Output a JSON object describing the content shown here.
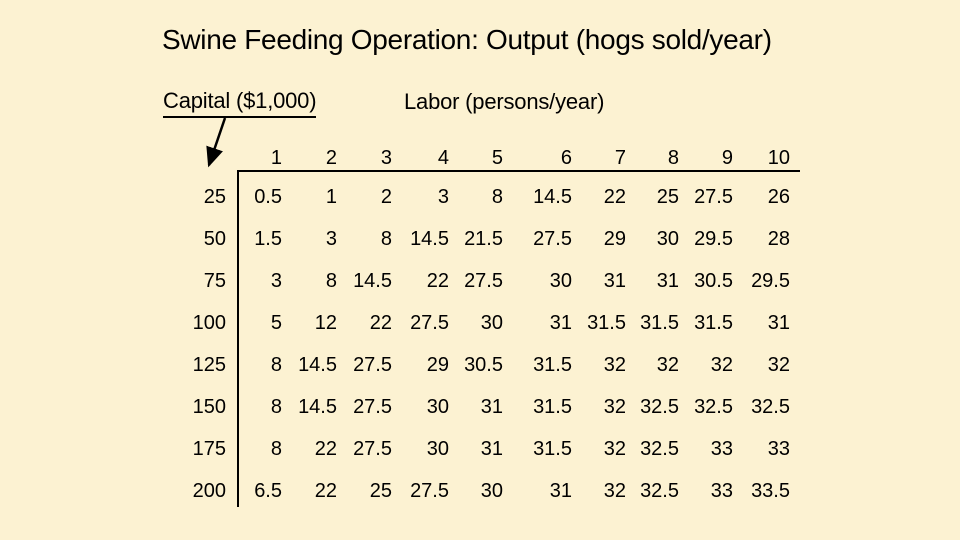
{
  "slide": {
    "title": "Swine Feeding Operation: Output (hogs sold/year)",
    "capital_axis_label": "Capital ($1,000)",
    "labor_axis_label": "Labor (persons/year)"
  },
  "chart_data": {
    "type": "table",
    "title": "Swine Feeding Operation: Output (hogs sold/year)",
    "row_axis_label": "Capital ($1,000)",
    "column_axis_label": "Labor (persons/year)",
    "columns": [
      "1",
      "2",
      "3",
      "4",
      "5",
      "6",
      "7",
      "8",
      "9",
      "10"
    ],
    "rows": [
      {
        "label": "25",
        "values": [
          "0.5",
          "1",
          "2",
          "3",
          "8",
          "14.5",
          "22",
          "25",
          "27.5",
          "26"
        ]
      },
      {
        "label": "50",
        "values": [
          "1.5",
          "3",
          "8",
          "14.5",
          "21.5",
          "27.5",
          "29",
          "30",
          "29.5",
          "28"
        ]
      },
      {
        "label": "75",
        "values": [
          "3",
          "8",
          "14.5",
          "22",
          "27.5",
          "30",
          "31",
          "31",
          "30.5",
          "29.5"
        ]
      },
      {
        "label": "100",
        "values": [
          "5",
          "12",
          "22",
          "27.5",
          "30",
          "31",
          "31.5",
          "31.5",
          "31.5",
          "31"
        ]
      },
      {
        "label": "125",
        "values": [
          "8",
          "14.5",
          "27.5",
          "29",
          "30.5",
          "31.5",
          "32",
          "32",
          "32",
          "32"
        ]
      },
      {
        "label": "150",
        "values": [
          "8",
          "14.5",
          "27.5",
          "30",
          "31",
          "31.5",
          "32",
          "32.5",
          "32.5",
          "32.5"
        ]
      },
      {
        "label": "175",
        "values": [
          "8",
          "22",
          "27.5",
          "30",
          "31",
          "31.5",
          "32",
          "32.5",
          "33",
          "33"
        ]
      },
      {
        "label": "200",
        "values": [
          "6.5",
          "22",
          "25",
          "27.5",
          "30",
          "31",
          "32",
          "32.5",
          "33",
          "33.5"
        ]
      }
    ]
  },
  "colors": {
    "background": "#fcf2d2",
    "text": "#000000",
    "line": "#000000"
  }
}
